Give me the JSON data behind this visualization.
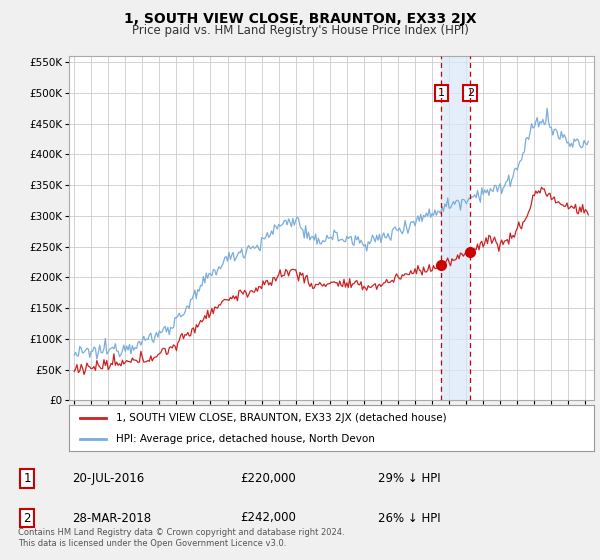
{
  "title": "1, SOUTH VIEW CLOSE, BRAUNTON, EX33 2JX",
  "subtitle": "Price paid vs. HM Land Registry's House Price Index (HPI)",
  "ylim": [
    0,
    560000
  ],
  "yticks": [
    0,
    50000,
    100000,
    150000,
    200000,
    250000,
    300000,
    350000,
    400000,
    450000,
    500000,
    550000
  ],
  "sale1_date_x": 2016.55,
  "sale1_price": 220000,
  "sale1_label": "1",
  "sale2_date_x": 2018.24,
  "sale2_price": 242000,
  "sale2_label": "2",
  "vline_color": "#cc0000",
  "vline_style": "--",
  "sale_marker_color": "#cc0000",
  "hpi_line_color": "#7aaddc",
  "price_line_color": "#cc2222",
  "legend_label_price": "1, SOUTH VIEW CLOSE, BRAUNTON, EX33 2JX (detached house)",
  "legend_label_hpi": "HPI: Average price, detached house, North Devon",
  "background_color": "#f0f0f0",
  "plot_bg_color": "#ffffff",
  "grid_color": "#cccccc",
  "highlight_rect_color": "#d8e8f8",
  "xlim_left": 1994.7,
  "xlim_right": 2025.5
}
